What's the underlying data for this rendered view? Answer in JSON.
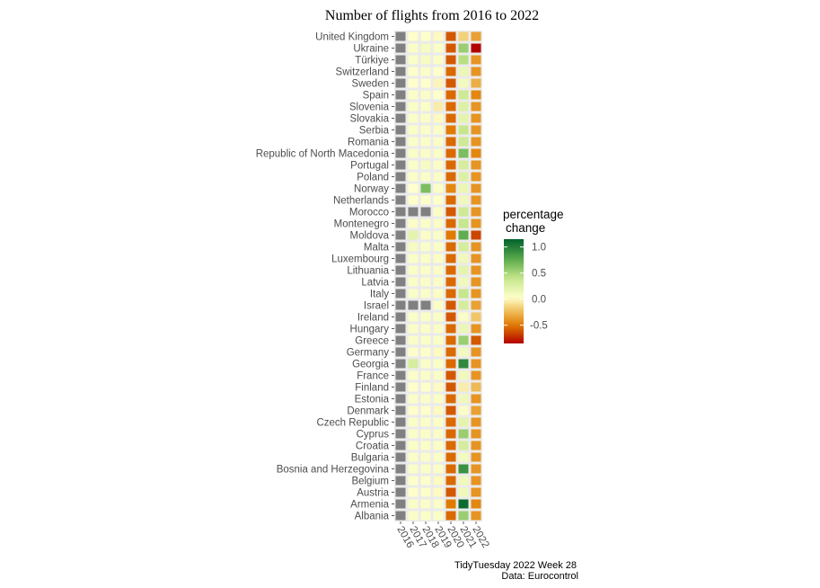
{
  "chart_data": {
    "type": "heatmap",
    "title": "Number of flights from 2016 to 2022",
    "x": [
      "2016",
      "2017",
      "2018",
      "2019",
      "2020",
      "2021",
      "2022"
    ],
    "y": [
      "United Kingdom",
      "Ukraine",
      "Türkiye",
      "Switzerland",
      "Sweden",
      "Spain",
      "Slovenia",
      "Slovakia",
      "Serbia",
      "Romania",
      "Republic of North Macedonia",
      "Portugal",
      "Poland",
      "Norway",
      "Netherlands",
      "Morocco",
      "Montenegro",
      "Moldova",
      "Malta",
      "Luxembourg",
      "Lithuania",
      "Latvia",
      "Italy",
      "Israel",
      "Ireland",
      "Hungary",
      "Greece",
      "Germany",
      "Georgia",
      "France",
      "Finland",
      "Estonia",
      "Denmark",
      "Czech Republic",
      "Cyprus",
      "Croatia",
      "Bulgaria",
      "Bosnia and Herzegovina",
      "Belgium",
      "Austria",
      "Armenia",
      "Albania"
    ],
    "values": [
      [
        "NA",
        0.03,
        0.02,
        0.0,
        -0.6,
        -0.15,
        -0.35
      ],
      [
        "NA",
        0.05,
        0.08,
        0.05,
        -0.6,
        0.55,
        -0.85
      ],
      [
        "NA",
        0.05,
        0.08,
        0.05,
        -0.6,
        0.45,
        -0.4
      ],
      [
        "NA",
        0.03,
        0.05,
        0.02,
        -0.55,
        0.15,
        -0.4
      ],
      [
        "NA",
        0.02,
        0.02,
        -0.02,
        -0.6,
        0.1,
        -0.3
      ],
      [
        "NA",
        0.05,
        0.05,
        0.02,
        -0.55,
        0.35,
        -0.45
      ],
      [
        "NA",
        0.05,
        0.05,
        -0.05,
        -0.55,
        0.25,
        -0.4
      ],
      [
        "NA",
        0.05,
        0.05,
        0.0,
        -0.55,
        0.2,
        -0.4
      ],
      [
        "NA",
        0.05,
        0.05,
        0.05,
        -0.5,
        0.4,
        -0.4
      ],
      [
        "NA",
        0.05,
        0.05,
        0.05,
        -0.55,
        0.35,
        -0.4
      ],
      [
        "NA",
        0.05,
        0.05,
        0.05,
        -0.55,
        0.65,
        -0.45
      ],
      [
        "NA",
        0.05,
        0.08,
        0.05,
        -0.55,
        0.3,
        -0.4
      ],
      [
        "NA",
        0.05,
        0.05,
        0.05,
        -0.55,
        0.25,
        -0.4
      ],
      [
        "NA",
        0.02,
        0.65,
        0.05,
        -0.45,
        0.15,
        -0.4
      ],
      [
        "NA",
        0.03,
        0.03,
        0.02,
        -0.55,
        0.12,
        -0.4
      ],
      [
        "NA",
        "NA",
        "NA",
        0.05,
        -0.6,
        0.35,
        -0.4
      ],
      [
        "NA",
        0.05,
        0.05,
        0.05,
        -0.55,
        0.4,
        -0.4
      ],
      [
        "NA",
        0.2,
        0.05,
        0.05,
        -0.5,
        0.75,
        -0.65
      ],
      [
        "NA",
        0.08,
        0.05,
        0.05,
        -0.55,
        0.3,
        -0.4
      ],
      [
        "NA",
        0.05,
        0.05,
        0.05,
        -0.55,
        0.12,
        -0.4
      ],
      [
        "NA",
        0.05,
        0.05,
        0.05,
        -0.55,
        0.2,
        -0.4
      ],
      [
        "NA",
        0.05,
        0.05,
        0.05,
        -0.55,
        0.12,
        -0.4
      ],
      [
        "NA",
        0.05,
        0.05,
        0.05,
        -0.55,
        0.4,
        -0.4
      ],
      [
        "NA",
        "NA",
        "NA",
        0.05,
        -0.6,
        0.3,
        -0.35
      ],
      [
        "NA",
        0.05,
        0.05,
        0.05,
        -0.6,
        0.05,
        -0.2
      ],
      [
        "NA",
        0.05,
        0.05,
        0.05,
        -0.55,
        0.15,
        -0.4
      ],
      [
        "NA",
        0.05,
        0.05,
        0.05,
        -0.55,
        0.55,
        -0.6
      ],
      [
        "NA",
        0.03,
        0.03,
        0.0,
        -0.55,
        0.1,
        -0.4
      ],
      [
        "NA",
        0.3,
        0.05,
        0.05,
        -0.55,
        0.95,
        -0.4
      ],
      [
        "NA",
        0.05,
        0.05,
        0.05,
        -0.6,
        0.12,
        -0.4
      ],
      [
        "NA",
        0.03,
        0.03,
        0.0,
        -0.6,
        -0.05,
        -0.25
      ],
      [
        "NA",
        0.05,
        0.05,
        0.05,
        -0.55,
        0.12,
        -0.4
      ],
      [
        "NA",
        0.03,
        0.03,
        0.0,
        -0.6,
        0.05,
        -0.35
      ],
      [
        "NA",
        0.05,
        0.05,
        0.05,
        -0.55,
        0.2,
        -0.4
      ],
      [
        "NA",
        0.05,
        0.05,
        0.05,
        -0.55,
        0.55,
        -0.4
      ],
      [
        "NA",
        0.05,
        0.05,
        0.05,
        -0.55,
        0.3,
        -0.4
      ],
      [
        "NA",
        0.05,
        0.05,
        0.05,
        -0.55,
        0.1,
        -0.4
      ],
      [
        "NA",
        0.05,
        0.05,
        0.05,
        -0.55,
        0.9,
        -0.4
      ],
      [
        "NA",
        0.03,
        0.03,
        0.0,
        -0.55,
        0.12,
        -0.4
      ],
      [
        "NA",
        0.03,
        0.03,
        0.0,
        -0.6,
        0.12,
        -0.4
      ],
      [
        "NA",
        0.05,
        0.05,
        0.05,
        -0.5,
        1.1,
        -0.45
      ],
      [
        "NA",
        0.05,
        0.05,
        0.05,
        -0.55,
        0.55,
        -0.4
      ]
    ],
    "legend": {
      "title_line1": "percentage",
      "title_line2": "change",
      "ticks": [
        1.0,
        0.5,
        0.0,
        -0.5
      ],
      "tick_labels": [
        "1.0",
        "0.5",
        "0.0",
        "-0.5"
      ],
      "range": [
        -0.85,
        1.15
      ],
      "placement": "right"
    },
    "colors": {
      "na": "#808080",
      "panel": "#ebebeb",
      "scale": [
        "#b30000",
        "#e07b00",
        "#f4d27a",
        "#ffffcc",
        "#c6e78b",
        "#5fad4e",
        "#00622b"
      ]
    },
    "caption_line1": "TidyTuesday 2022 Week 28",
    "caption_line2": "Data:  Eurocontrol"
  }
}
